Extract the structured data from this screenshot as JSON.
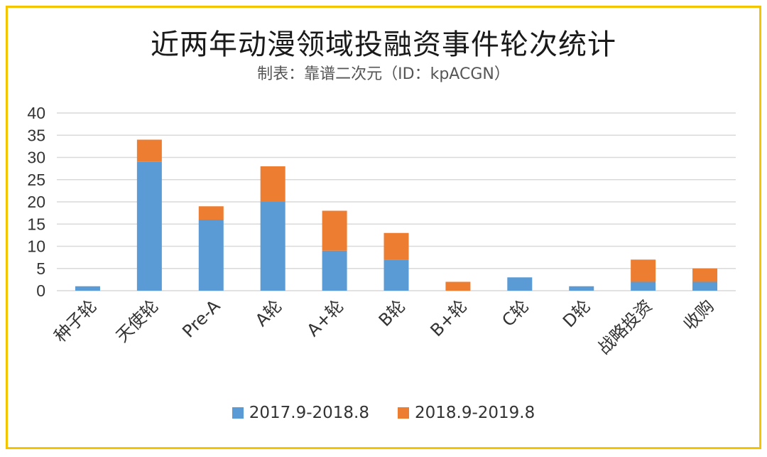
{
  "colors": {
    "frame": "#f5c400",
    "series1": "#5b9bd5",
    "series2": "#ed7d31",
    "grid": "#d9d9d9",
    "text": "#333333"
  },
  "chart_data": {
    "type": "bar",
    "stacked": true,
    "title": "近两年动漫领域投融资事件轮次统计",
    "subtitle": "制表：靠谱二次元（ID：kpACGN）",
    "categories": [
      "种子轮",
      "天使轮",
      "Pre-A",
      "A轮",
      "A+轮",
      "B轮",
      "B+轮",
      "C轮",
      "D轮",
      "战略投资",
      "收购"
    ],
    "series": [
      {
        "name": "2017.9-2018.8",
        "values": [
          1,
          29,
          16,
          20,
          9,
          7,
          0,
          3,
          1,
          2,
          2
        ]
      },
      {
        "name": "2018.9-2019.8",
        "values": [
          0,
          5,
          3,
          8,
          9,
          6,
          2,
          0,
          0,
          5,
          3
        ]
      }
    ],
    "ylim": [
      0,
      40
    ],
    "yticks": [
      0,
      5,
      10,
      15,
      20,
      25,
      30,
      35,
      40
    ],
    "grid": true,
    "legend": "bottom",
    "xlabel": "",
    "ylabel": ""
  }
}
